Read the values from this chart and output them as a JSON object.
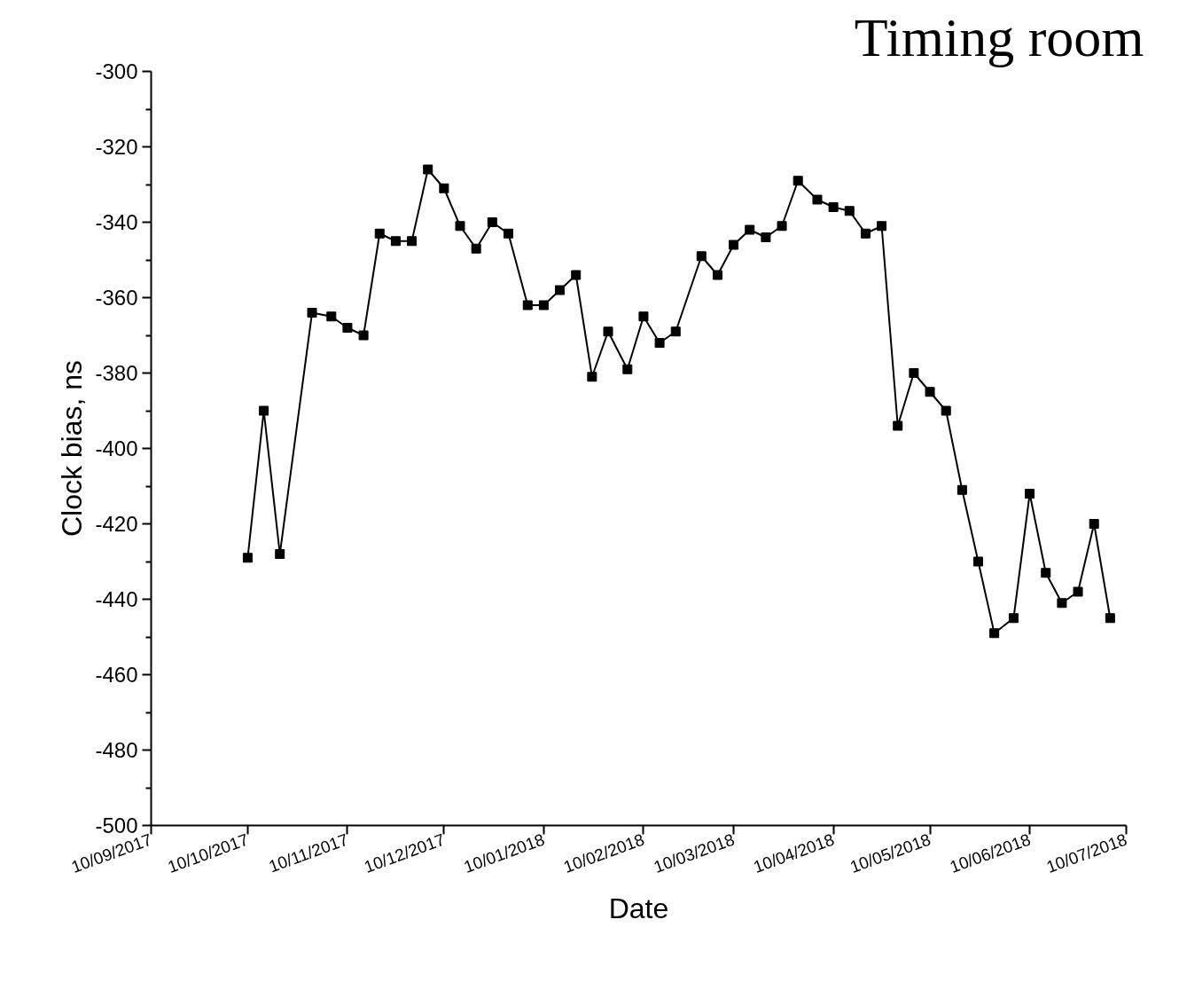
{
  "chart_data": {
    "type": "line",
    "title": "Timing room",
    "xlabel": "Date",
    "ylabel": "Clock bias, ns",
    "x": [
      "2017-10-10",
      "2017-10-15",
      "2017-10-20",
      "2017-10-30",
      "2017-11-05",
      "2017-11-10",
      "2017-11-15",
      "2017-11-20",
      "2017-11-25",
      "2017-11-30",
      "2017-12-05",
      "2017-12-10",
      "2017-12-15",
      "2017-12-20",
      "2017-12-25",
      "2017-12-30",
      "2018-01-05",
      "2018-01-10",
      "2018-01-15",
      "2018-01-20",
      "2018-01-25",
      "2018-01-30",
      "2018-02-05",
      "2018-02-10",
      "2018-02-15",
      "2018-02-20",
      "2018-02-28",
      "2018-03-05",
      "2018-03-10",
      "2018-03-15",
      "2018-03-20",
      "2018-03-25",
      "2018-03-30",
      "2018-04-05",
      "2018-04-10",
      "2018-04-15",
      "2018-04-20",
      "2018-04-25",
      "2018-04-30",
      "2018-05-05",
      "2018-05-10",
      "2018-05-15",
      "2018-05-20",
      "2018-05-25",
      "2018-05-30",
      "2018-06-05",
      "2018-06-10",
      "2018-06-15",
      "2018-06-20",
      "2018-06-25",
      "2018-06-30",
      "2018-07-05"
    ],
    "series": [
      {
        "color": "#000000",
        "values": [
          -429,
          -390,
          -428,
          -364,
          -365,
          -368,
          -370,
          -343,
          -345,
          -345,
          -326,
          -331,
          -341,
          -347,
          -340,
          -343,
          -362,
          -362,
          -358,
          -354,
          -381,
          -369,
          -379,
          -365,
          -372,
          -369,
          -349,
          -354,
          -346,
          -342,
          -344,
          -341,
          -329,
          -334,
          -336,
          -337,
          -343,
          -341,
          -394,
          -380,
          -385,
          -390,
          -411,
          -430,
          -449,
          -445,
          -412,
          -433,
          -441,
          -438,
          -420,
          -445
        ]
      }
    ],
    "marker": "square",
    "line_style": "solid",
    "grid": false,
    "xlim": [
      "2017-09-10",
      "2018-07-10"
    ],
    "xticks": [
      {
        "value": "2017-09-10",
        "label": "10/09/2017"
      },
      {
        "value": "2017-10-10",
        "label": "10/10/2017"
      },
      {
        "value": "2017-11-10",
        "label": "10/11/2017"
      },
      {
        "value": "2017-12-10",
        "label": "10/12/2017"
      },
      {
        "value": "2018-01-10",
        "label": "10/01/2018"
      },
      {
        "value": "2018-02-10",
        "label": "10/02/2018"
      },
      {
        "value": "2018-03-10",
        "label": "10/03/2018"
      },
      {
        "value": "2018-04-10",
        "label": "10/04/2018"
      },
      {
        "value": "2018-05-10",
        "label": "10/05/2018"
      },
      {
        "value": "2018-06-10",
        "label": "10/06/2018"
      },
      {
        "value": "2018-07-10",
        "label": "10/07/2018"
      }
    ],
    "ylim": [
      -500,
      -300
    ],
    "yticks": [
      -500,
      -480,
      -460,
      -440,
      -420,
      -400,
      -380,
      -360,
      -340,
      -320,
      -300
    ]
  }
}
